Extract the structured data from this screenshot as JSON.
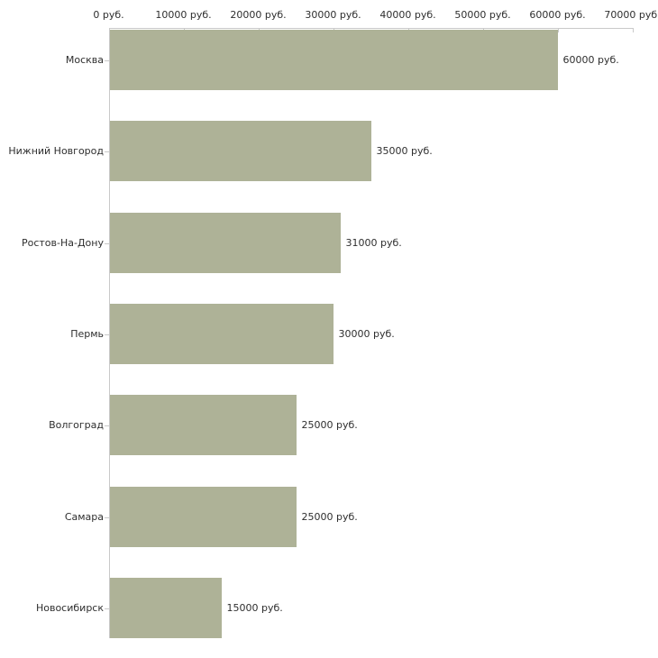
{
  "chart_data": {
    "type": "bar",
    "orientation": "horizontal",
    "title": "",
    "categories": [
      "Москва",
      "Нижний Новгород",
      "Ростов-На-Дону",
      "Пермь",
      "Волгоград",
      "Самара",
      "Новосибирск"
    ],
    "values": [
      60000,
      35000,
      31000,
      30000,
      25000,
      25000,
      15000
    ],
    "value_labels": [
      "60000 руб.",
      "35000 руб.",
      "31000 руб.",
      "30000 руб.",
      "25000 руб.",
      "25000 руб.",
      "15000 руб."
    ],
    "x_axis": {
      "position": "top",
      "range": [
        0,
        70000
      ],
      "ticks": [
        0,
        10000,
        20000,
        30000,
        40000,
        50000,
        60000,
        70000
      ],
      "tick_labels": [
        "0 руб.",
        "10000 руб.",
        "20000 руб.",
        "30000 руб.",
        "40000 руб.",
        "50000 руб.",
        "60000 руб.",
        "70000 руб."
      ]
    },
    "unit": "руб.",
    "grid": false,
    "legend_position": "none",
    "colors": {
      "bar": "#aeb297",
      "axis": "#c9c9c9",
      "text": "#2e2e2e"
    }
  }
}
